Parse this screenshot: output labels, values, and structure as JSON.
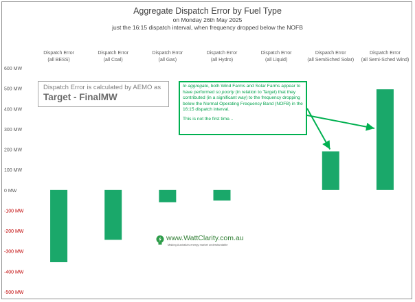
{
  "chart_data": {
    "type": "bar",
    "title": "Aggregate Dispatch Error by Fuel Type",
    "subtitle_line1": "on Monday 26th May 2025",
    "subtitle_line2": "just the 16:15 dispatch interval, when frequency dropped below the NOFB",
    "categories": [
      "Dispatch Error\n(all BESS)",
      "Dispatch Error\n(all Coal)",
      "Dispatch Error\n(all Gas)",
      "Dispatch Error\n(all Hydro)",
      "Dispatch Error\n(all Liquid)",
      "Dispatch Error\n(all SemiSched Solar)",
      "Dispatch Error\n(all Semi-Sched Wind)"
    ],
    "values": [
      -355,
      -245,
      -60,
      -52,
      0,
      190,
      495
    ],
    "ylim": [
      -500,
      600
    ],
    "yticks": [
      600,
      500,
      400,
      300,
      200,
      100,
      0,
      -100,
      -200,
      -300,
      -400,
      -500
    ],
    "ytick_labels": [
      "600 MW",
      "500 MW",
      "400 MW",
      "300 MW",
      "200 MW",
      "100 MW",
      "0 MW",
      "-100 MW",
      "-200 MW",
      "-300 MW",
      "-400 MW",
      "-500 MW"
    ],
    "xlabel": "",
    "ylabel": "",
    "bar_color": "#1aa86a",
    "negative_tick_color": "#c00000",
    "positive_tick_color": "#595959",
    "annotation_color": "#00b050"
  },
  "note": {
    "line1": "Dispatch Error is calculated by AEMO as",
    "line2": "Target - FinalMW"
  },
  "annotation": {
    "t1": "In aggregate",
    "t2": ", both Wind Farms and Solar Farms appear to have performed ",
    "t3": "so poorly",
    "t4": " (in relation to Target) that they contributed (in a significant way) to the frequency dropping below the Normal Operating Frequency Band (NOFB) in the 16:15 dispatch interval.",
    "p2": "This is not the first time..."
  },
  "logo": {
    "name": "www.WattClarity.com.au",
    "tagline": "Making Australia's energy market understandable"
  }
}
